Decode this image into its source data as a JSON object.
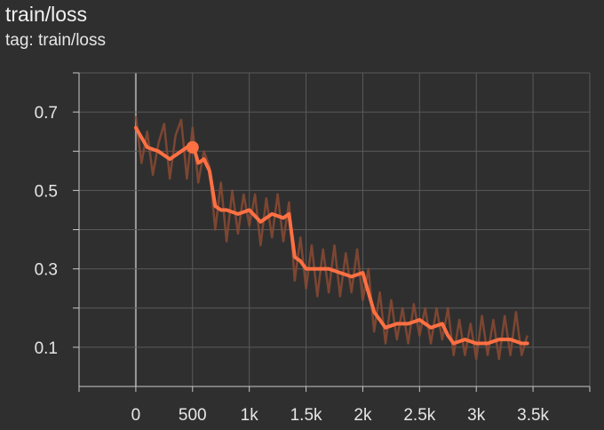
{
  "header": {
    "title": "train/loss",
    "tag": "tag: train/loss"
  },
  "colors": {
    "background": "#2f2f2f",
    "grid": "#5a5a5a",
    "axis": "#c8c8c8",
    "smoothed": "#ff7043",
    "raw": "#8a4a33"
  },
  "chart_data": {
    "type": "line",
    "title": "train/loss",
    "subtitle": "tag: train/loss",
    "xlabel": "",
    "ylabel": "",
    "xlim": [
      -500,
      4000
    ],
    "ylim": [
      0.0,
      0.8
    ],
    "x_ticks": [
      0,
      500,
      1000,
      1500,
      2000,
      2500,
      3000,
      3500
    ],
    "x_tick_labels": [
      "0",
      "500",
      "1k",
      "1.5k",
      "2k",
      "2.5k",
      "3k",
      "3.5k"
    ],
    "y_ticks": [
      0.1,
      0.3,
      0.5,
      0.7
    ],
    "y_tick_labels": [
      "0.1",
      "0.3",
      "0.5",
      "0.7"
    ],
    "grid": true,
    "legend": "none",
    "series": [
      {
        "style": "smoothed",
        "x": [
          0,
          100,
          200,
          300,
          400,
          500,
          550,
          600,
          650,
          700,
          750,
          800,
          900,
          1000,
          1100,
          1200,
          1300,
          1350,
          1400,
          1450,
          1500,
          1600,
          1700,
          1800,
          1900,
          2000,
          2050,
          2100,
          2150,
          2200,
          2300,
          2400,
          2500,
          2600,
          2700,
          2750,
          2800,
          2900,
          3000,
          3100,
          3200,
          3300,
          3400,
          3450
        ],
        "y": [
          0.66,
          0.61,
          0.6,
          0.58,
          0.6,
          0.62,
          0.57,
          0.58,
          0.55,
          0.46,
          0.45,
          0.45,
          0.44,
          0.45,
          0.42,
          0.44,
          0.43,
          0.44,
          0.33,
          0.32,
          0.3,
          0.3,
          0.3,
          0.29,
          0.28,
          0.29,
          0.24,
          0.19,
          0.17,
          0.15,
          0.16,
          0.16,
          0.17,
          0.15,
          0.16,
          0.13,
          0.11,
          0.12,
          0.11,
          0.11,
          0.12,
          0.12,
          0.11,
          0.11
        ]
      },
      {
        "style": "raw",
        "x": [
          0,
          50,
          100,
          150,
          200,
          250,
          300,
          350,
          400,
          450,
          500,
          550,
          600,
          650,
          700,
          750,
          800,
          850,
          900,
          950,
          1000,
          1050,
          1100,
          1150,
          1200,
          1250,
          1300,
          1350,
          1400,
          1450,
          1500,
          1550,
          1600,
          1650,
          1700,
          1750,
          1800,
          1850,
          1900,
          1950,
          2000,
          2050,
          2100,
          2150,
          2200,
          2250,
          2300,
          2350,
          2400,
          2450,
          2500,
          2550,
          2600,
          2650,
          2700,
          2750,
          2800,
          2850,
          2900,
          2950,
          3000,
          3050,
          3100,
          3150,
          3200,
          3250,
          3300,
          3350,
          3400,
          3450
        ],
        "y": [
          0.69,
          0.57,
          0.65,
          0.54,
          0.62,
          0.67,
          0.53,
          0.64,
          0.68,
          0.53,
          0.66,
          0.52,
          0.6,
          0.56,
          0.4,
          0.52,
          0.37,
          0.5,
          0.39,
          0.49,
          0.41,
          0.49,
          0.36,
          0.48,
          0.38,
          0.49,
          0.37,
          0.47,
          0.27,
          0.38,
          0.25,
          0.36,
          0.23,
          0.35,
          0.24,
          0.36,
          0.23,
          0.34,
          0.24,
          0.35,
          0.22,
          0.3,
          0.14,
          0.24,
          0.11,
          0.22,
          0.12,
          0.2,
          0.11,
          0.21,
          0.13,
          0.2,
          0.11,
          0.2,
          0.12,
          0.2,
          0.08,
          0.17,
          0.08,
          0.16,
          0.07,
          0.18,
          0.08,
          0.17,
          0.07,
          0.18,
          0.08,
          0.19,
          0.08,
          0.13
        ]
      }
    ],
    "markers": [
      {
        "x": 500,
        "y": 0.61
      }
    ]
  }
}
